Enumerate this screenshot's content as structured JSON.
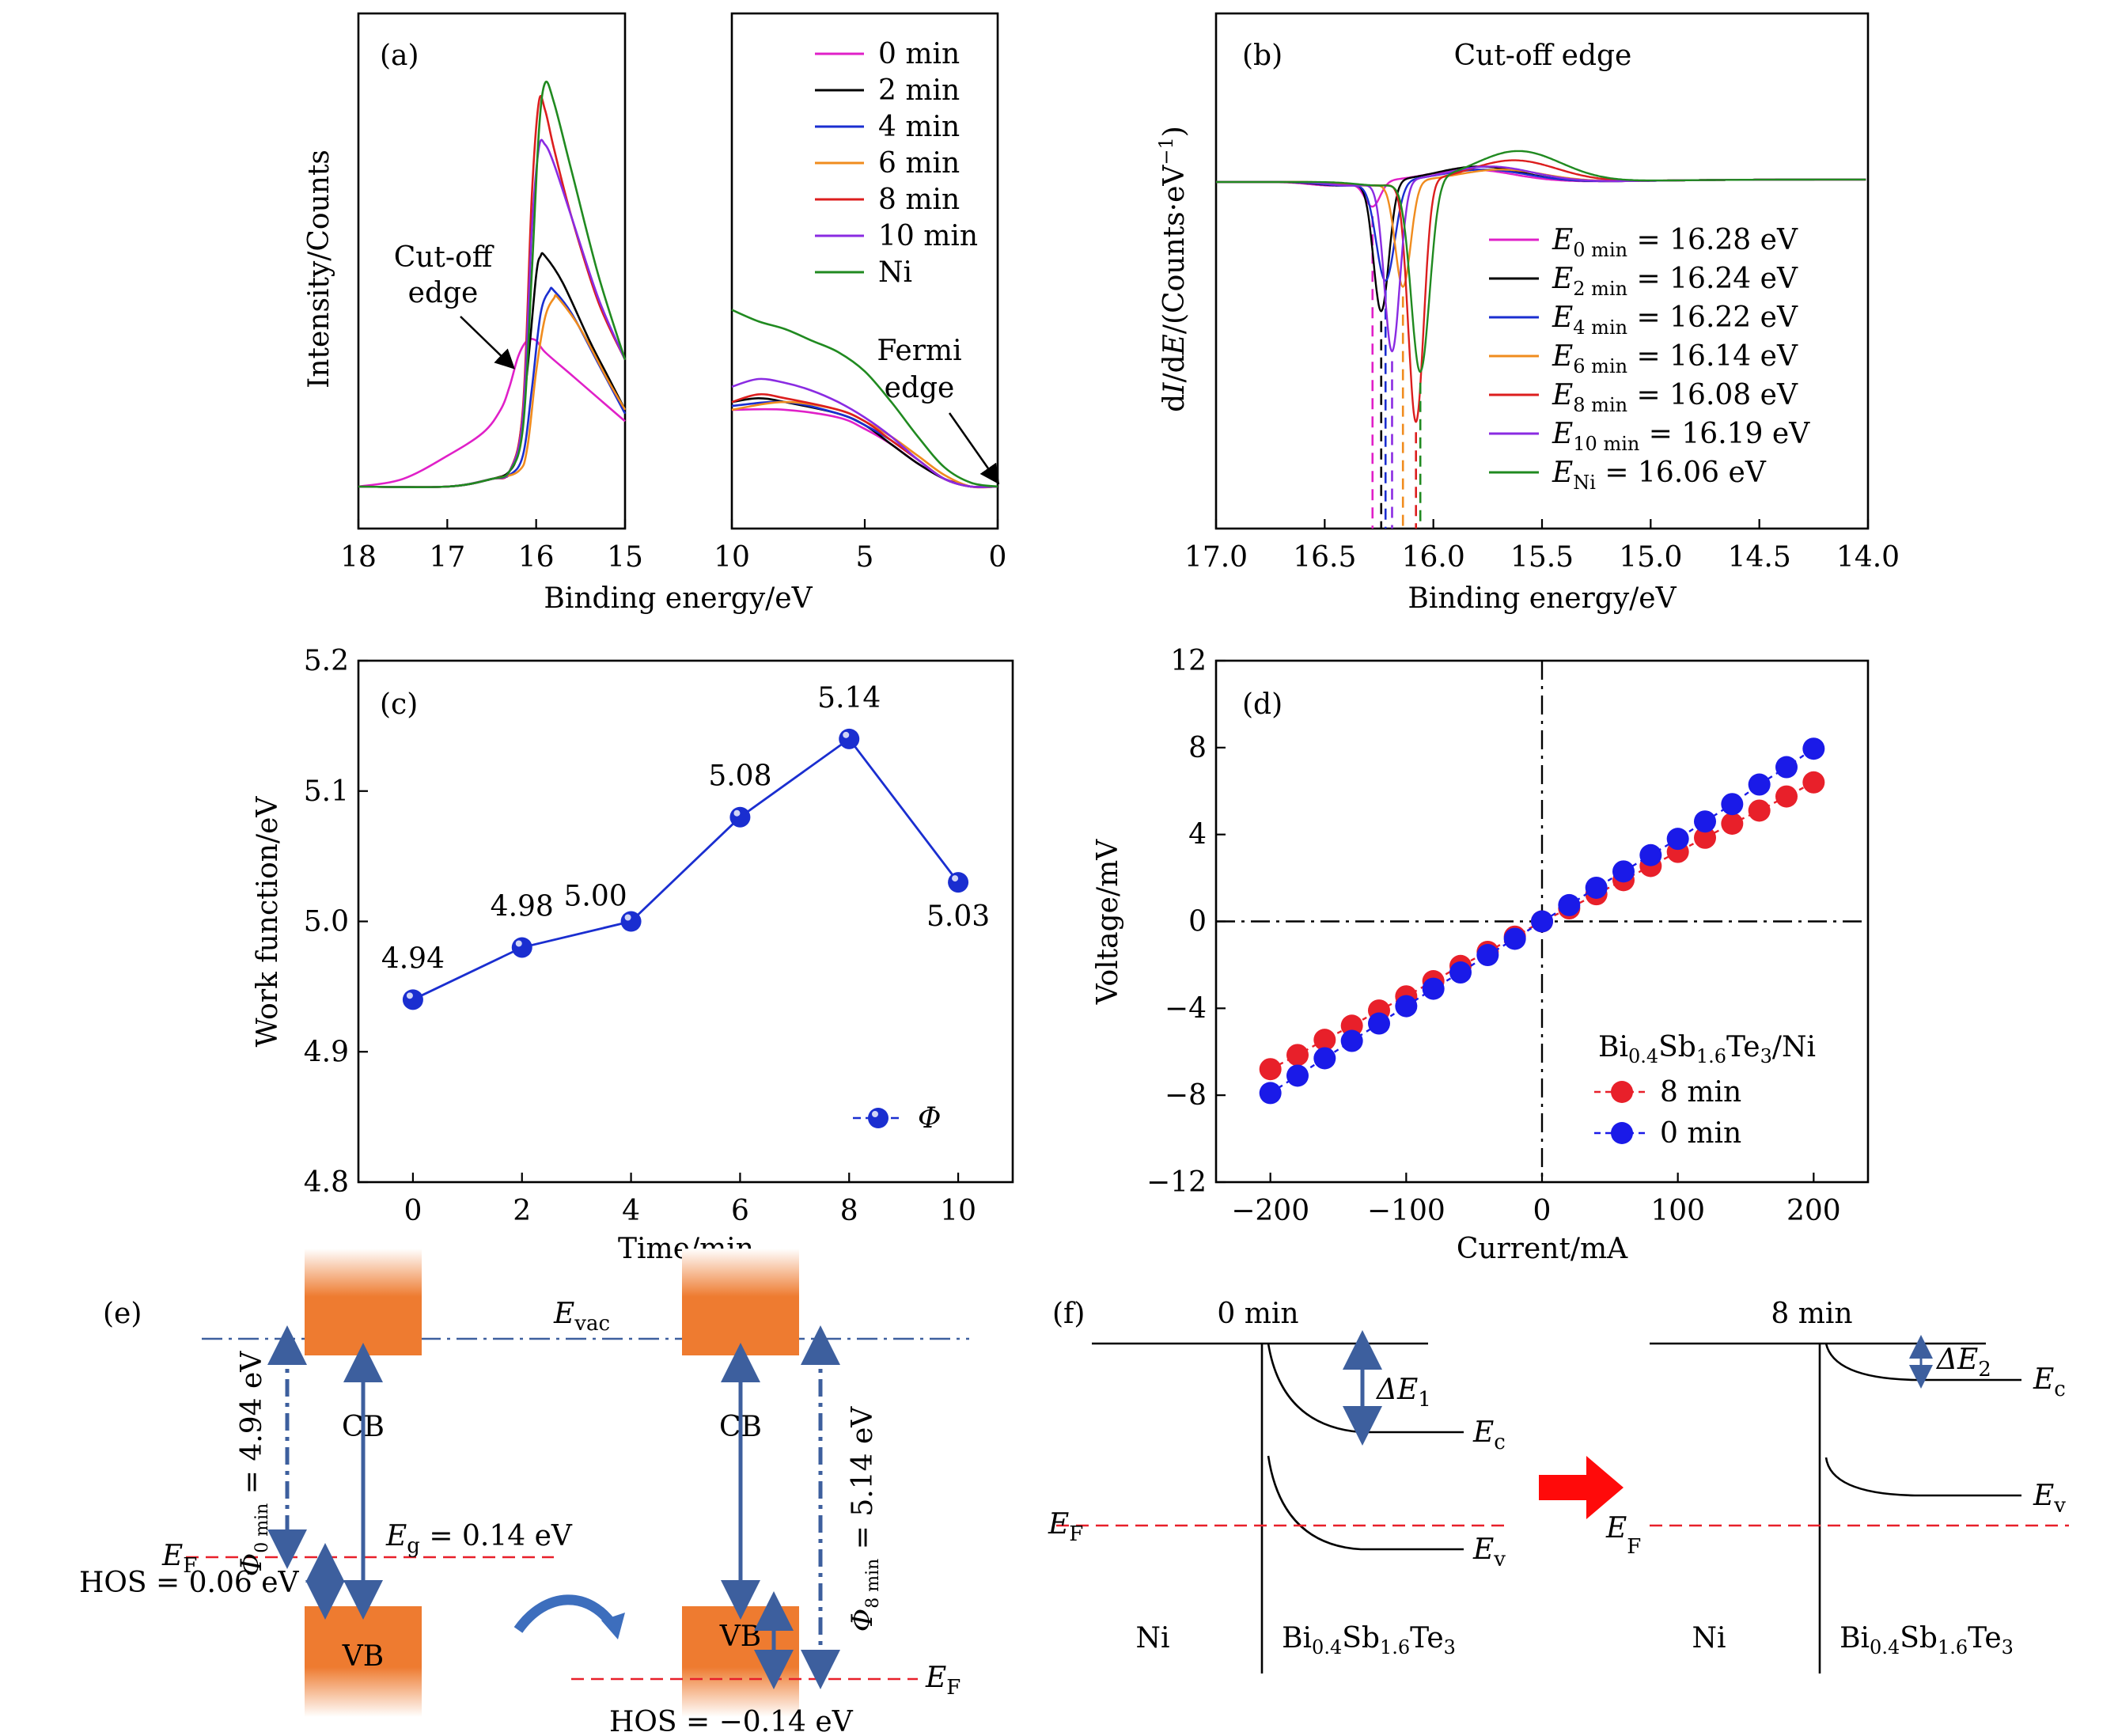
{
  "chart_data": [
    {
      "id": "a",
      "type": "line",
      "panel_label": "(a)",
      "xlabel": "Binding energy/eV",
      "ylabel": "Intensity/Counts",
      "left_segment": {
        "xlim": [
          18,
          15
        ],
        "xticks": [
          "18",
          "17",
          "16",
          "15"
        ]
      },
      "right_segment": {
        "xlim": [
          10,
          0
        ],
        "xticks": [
          "10",
          "5",
          "0"
        ]
      },
      "legend": [
        "0 min",
        "2 min",
        "4 min",
        "6 min",
        "8 min",
        "10 min",
        "Ni"
      ],
      "colors": [
        "#e020c8",
        "#000000",
        "#1a2ed0",
        "#f08c1e",
        "#dc1e1e",
        "#8a2be2",
        "#208a20"
      ],
      "annotations": {
        "cutoff_l1": "Cut-off",
        "cutoff_l2": "edge",
        "fermi_l1": "Fermi",
        "fermi_l2": "edge"
      },
      "series_left": [
        {
          "name": "0 min",
          "x": [
            18,
            17.5,
            17,
            16.6,
            16.4,
            16.3,
            16.2,
            16.1,
            16.0,
            15.9,
            15.6,
            15.3,
            15.0
          ],
          "y": [
            0.0,
            0.02,
            0.08,
            0.14,
            0.2,
            0.26,
            0.34,
            0.38,
            0.38,
            0.35,
            0.29,
            0.23,
            0.17
          ]
        },
        {
          "name": "2 min",
          "x": [
            18,
            17.0,
            16.5,
            16.3,
            16.2,
            16.1,
            16.0,
            15.95,
            15.9,
            15.7,
            15.4,
            15.2,
            15.0
          ],
          "y": [
            0.0,
            0.0,
            0.02,
            0.04,
            0.1,
            0.3,
            0.55,
            0.6,
            0.6,
            0.53,
            0.38,
            0.29,
            0.2
          ]
        },
        {
          "name": "4 min",
          "x": [
            18,
            17.0,
            16.5,
            16.3,
            16.15,
            16.05,
            15.95,
            15.85,
            15.8,
            15.6,
            15.3,
            15.0
          ],
          "y": [
            0.0,
            0.0,
            0.02,
            0.03,
            0.08,
            0.25,
            0.45,
            0.51,
            0.51,
            0.45,
            0.32,
            0.19
          ]
        },
        {
          "name": "6 min",
          "x": [
            18,
            17.0,
            16.5,
            16.2,
            16.1,
            16.0,
            15.9,
            15.8,
            15.75,
            15.5,
            15.2,
            15.0
          ],
          "y": [
            0.0,
            0.0,
            0.02,
            0.04,
            0.1,
            0.3,
            0.44,
            0.49,
            0.49,
            0.41,
            0.28,
            0.2
          ]
        },
        {
          "name": "8 min",
          "x": [
            18,
            17.0,
            16.5,
            16.3,
            16.15,
            16.05,
            15.97,
            15.9,
            15.8,
            15.6,
            15.3,
            15.0
          ],
          "y": [
            0.0,
            0.0,
            0.02,
            0.04,
            0.2,
            0.75,
            1.0,
            0.98,
            0.88,
            0.7,
            0.48,
            0.33
          ]
        },
        {
          "name": "10 min",
          "x": [
            18,
            17.0,
            16.5,
            16.3,
            16.15,
            16.05,
            15.97,
            15.9,
            15.8,
            15.6,
            15.3,
            15.0
          ],
          "y": [
            0.0,
            0.0,
            0.02,
            0.04,
            0.18,
            0.66,
            0.88,
            0.89,
            0.84,
            0.7,
            0.49,
            0.33
          ]
        },
        {
          "name": "Ni",
          "x": [
            18,
            17.0,
            16.5,
            16.3,
            16.15,
            16.05,
            15.97,
            15.9,
            15.8,
            15.6,
            15.3,
            15.0
          ],
          "y": [
            0.0,
            0.0,
            0.02,
            0.04,
            0.15,
            0.55,
            0.92,
            1.05,
            1.0,
            0.82,
            0.55,
            0.33
          ]
        }
      ],
      "series_right": [
        {
          "name": "0 min",
          "x": [
            10,
            8,
            6,
            5,
            4,
            3,
            2,
            1.5,
            1,
            0
          ],
          "y": [
            0.2,
            0.2,
            0.18,
            0.15,
            0.11,
            0.06,
            0.02,
            0.01,
            0.0,
            0.0
          ]
        },
        {
          "name": "2 min",
          "x": [
            10,
            9,
            8,
            6,
            5,
            4,
            3,
            2,
            1,
            0
          ],
          "y": [
            0.22,
            0.23,
            0.22,
            0.19,
            0.16,
            0.11,
            0.06,
            0.02,
            0.0,
            0.0
          ]
        },
        {
          "name": "4 min",
          "x": [
            10,
            8,
            6,
            5,
            4,
            3,
            2,
            1,
            0
          ],
          "y": [
            0.21,
            0.22,
            0.19,
            0.16,
            0.12,
            0.07,
            0.02,
            0.0,
            0.0
          ]
        },
        {
          "name": "6 min",
          "x": [
            10,
            8,
            6,
            5,
            4,
            3,
            2,
            1,
            0
          ],
          "y": [
            0.2,
            0.22,
            0.2,
            0.17,
            0.13,
            0.08,
            0.03,
            0.0,
            0.0
          ]
        },
        {
          "name": "8 min",
          "x": [
            10,
            9,
            8,
            6,
            5,
            4,
            3,
            2,
            1,
            0
          ],
          "y": [
            0.22,
            0.24,
            0.23,
            0.2,
            0.17,
            0.12,
            0.07,
            0.02,
            0.0,
            0.0
          ]
        },
        {
          "name": "10 min",
          "x": [
            10,
            9,
            8,
            7,
            6,
            5,
            4,
            3,
            2,
            1,
            0
          ],
          "y": [
            0.26,
            0.28,
            0.27,
            0.25,
            0.22,
            0.18,
            0.13,
            0.07,
            0.02,
            0.0,
            0.0
          ]
        },
        {
          "name": "Ni",
          "x": [
            10,
            9,
            8,
            7,
            6,
            5,
            4,
            3,
            2,
            1,
            0
          ],
          "y": [
            0.46,
            0.43,
            0.41,
            0.38,
            0.35,
            0.3,
            0.22,
            0.13,
            0.05,
            0.01,
            0.0
          ]
        }
      ]
    },
    {
      "id": "b",
      "type": "line",
      "panel_label": "(b)",
      "title": "Cut-off edge",
      "xlabel": "Binding energy/eV",
      "ylabel": "dI/dE/(Counts·eV⁻¹)",
      "xlim": [
        17.0,
        14.0
      ],
      "xticks": [
        "17.0",
        "16.5",
        "16.0",
        "15.5",
        "15.0",
        "14.5",
        "14.0"
      ],
      "ylim": [
        -1,
        0.3
      ],
      "colors": [
        "#e020c8",
        "#000000",
        "#1a2ed0",
        "#f08c1e",
        "#dc1e1e",
        "#8a2be2",
        "#208a20"
      ],
      "legend": [
        {
          "sym": "E",
          "sub": "0 min",
          "value": "= 16.28 eV"
        },
        {
          "sym": "E",
          "sub": "2 min",
          "value": "= 16.24 eV"
        },
        {
          "sym": "E",
          "sub": "4 min",
          "value": "= 16.22 eV"
        },
        {
          "sym": "E",
          "sub": "6 min",
          "value": "= 16.14 eV"
        },
        {
          "sym": "E",
          "sub": "8 min",
          "value": "= 16.08 eV"
        },
        {
          "sym": "E",
          "sub": "10 min",
          "value": " = 16.19 eV"
        },
        {
          "sym": "E",
          "sub": "Ni",
          "value": " = 16.06 eV"
        }
      ],
      "minima": [
        16.28,
        16.24,
        16.22,
        16.14,
        16.08,
        16.19,
        16.06
      ],
      "depths": [
        -0.08,
        -0.42,
        -0.32,
        -0.34,
        -0.78,
        -0.55,
        -0.62
      ],
      "widths": [
        0.05,
        0.05,
        0.06,
        0.05,
        0.05,
        0.05,
        0.06
      ],
      "overshoot": [
        0.04,
        0.05,
        0.04,
        0.04,
        0.07,
        0.05,
        0.1
      ]
    },
    {
      "id": "c",
      "type": "line",
      "panel_label": "(c)",
      "xlabel": "Time/min",
      "ylabel": "Work function/eV",
      "xlim": [
        -1,
        11
      ],
      "ylim": [
        4.8,
        5.2
      ],
      "xticks": [
        "0",
        "2",
        "4",
        "6",
        "8",
        "10"
      ],
      "yticks": [
        "4.8",
        "4.9",
        "5.0",
        "5.1",
        "5.2"
      ],
      "series": [
        {
          "name": "Φ",
          "x": [
            0,
            2,
            4,
            6,
            8,
            10
          ],
          "y": [
            4.94,
            4.98,
            5.0,
            5.08,
            5.14,
            5.03
          ],
          "color": "#1a2ed0"
        }
      ],
      "data_labels": [
        "4.94",
        "4.98",
        "5.00",
        "5.08",
        "5.14",
        "5.03"
      ]
    },
    {
      "id": "d",
      "type": "scatter",
      "panel_label": "(d)",
      "xlabel": "Current/mA",
      "ylabel": "Voltage/mV",
      "xlim": [
        -240,
        240
      ],
      "ylim": [
        -12,
        12
      ],
      "xticks": [
        "−200",
        "−100",
        "0",
        "100",
        "200"
      ],
      "yticks": [
        "−12",
        "−8",
        "−4",
        "0",
        "4",
        "8",
        "12"
      ],
      "legend_title_parts": [
        "Bi",
        "0.4",
        "Sb",
        "1.6",
        "Te",
        "3",
        "/Ni"
      ],
      "series": [
        {
          "name": "8 min",
          "color": "#e8202a",
          "x": [
            -200,
            -180,
            -160,
            -140,
            -120,
            -100,
            -80,
            -60,
            -40,
            -20,
            0,
            20,
            40,
            60,
            80,
            100,
            120,
            140,
            160,
            180,
            200
          ],
          "y": [
            -6.8,
            -6.15,
            -5.45,
            -4.8,
            -4.1,
            -3.45,
            -2.75,
            -2.05,
            -1.4,
            -0.7,
            0,
            0.6,
            1.25,
            1.9,
            2.55,
            3.2,
            3.85,
            4.5,
            5.1,
            5.75,
            6.4
          ]
        },
        {
          "name": "0 min",
          "color": "#1a1ae8",
          "x": [
            -200,
            -180,
            -160,
            -140,
            -120,
            -100,
            -80,
            -60,
            -40,
            -20,
            0,
            20,
            40,
            60,
            80,
            100,
            120,
            140,
            160,
            180,
            200
          ],
          "y": [
            -7.9,
            -7.1,
            -6.3,
            -5.5,
            -4.7,
            -3.9,
            -3.1,
            -2.35,
            -1.55,
            -0.8,
            0,
            0.75,
            1.55,
            2.3,
            3.05,
            3.8,
            4.6,
            5.4,
            6.3,
            7.1,
            7.95
          ]
        }
      ]
    }
  ],
  "panel_e": {
    "label": "(e)",
    "evac_sym": "E",
    "evac_sub": "vac",
    "ef_sym": "E",
    "ef_sub": "F",
    "cb": "CB",
    "vb": "VB",
    "eg_sym": "E",
    "eg_sub": "g",
    "eg_value": " = 0.14 eV",
    "hos_left": "HOS = 0.06 eV",
    "hos_right": "HOS = −0.14 eV",
    "phi_left_sym": "Φ",
    "phi_left_sub": "0 min",
    "phi_left_value": " = 4.94 eV",
    "phi_right_sym": "Φ",
    "phi_right_sub": "8 min",
    "phi_right_value": " = 5.14 eV"
  },
  "panel_f": {
    "label": "(f)",
    "left_title": "0 min",
    "right_title": "8 min",
    "ni": "Ni",
    "mat_parts": [
      "Bi",
      "0.4",
      "Sb",
      "1.6",
      "Te",
      "3"
    ],
    "de1_sym": "ΔE",
    "de1_sub": "1",
    "de2_sym": "ΔE",
    "de2_sub": "2",
    "ec_sym": "E",
    "ec_sub": "c",
    "ev_sym": "E",
    "ev_sub": "v",
    "ef_sym": "E",
    "ef_sub": "F"
  },
  "colors": {
    "red": "#e8202a",
    "blue": "#1a2ed0",
    "slate": "#3d5f9e",
    "label_blue": "#4a72c4",
    "orange": "#ee7b30"
  }
}
